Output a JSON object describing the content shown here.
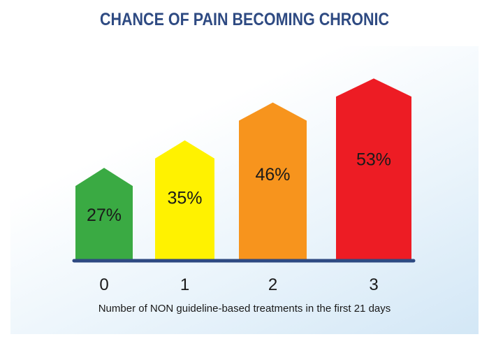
{
  "chart_data": {
    "type": "bar",
    "title": "CHANCE OF PAIN BECOMING CHRONIC",
    "xlabel": "Number of NON guideline-based treatments in the first 21 days",
    "ylabel": "",
    "categories": [
      "0",
      "1",
      "2",
      "3"
    ],
    "values": [
      27,
      35,
      46,
      53
    ],
    "value_labels": [
      "27%",
      "35%",
      "46%",
      "53%"
    ],
    "ylim": [
      0,
      55
    ],
    "grid": false,
    "legend": "none",
    "colors": [
      "#3aaa43",
      "#fff200",
      "#f7941d",
      "#ed1c24"
    ],
    "baseline_color": "#2e4a82",
    "title_color": "#2e4a82"
  }
}
